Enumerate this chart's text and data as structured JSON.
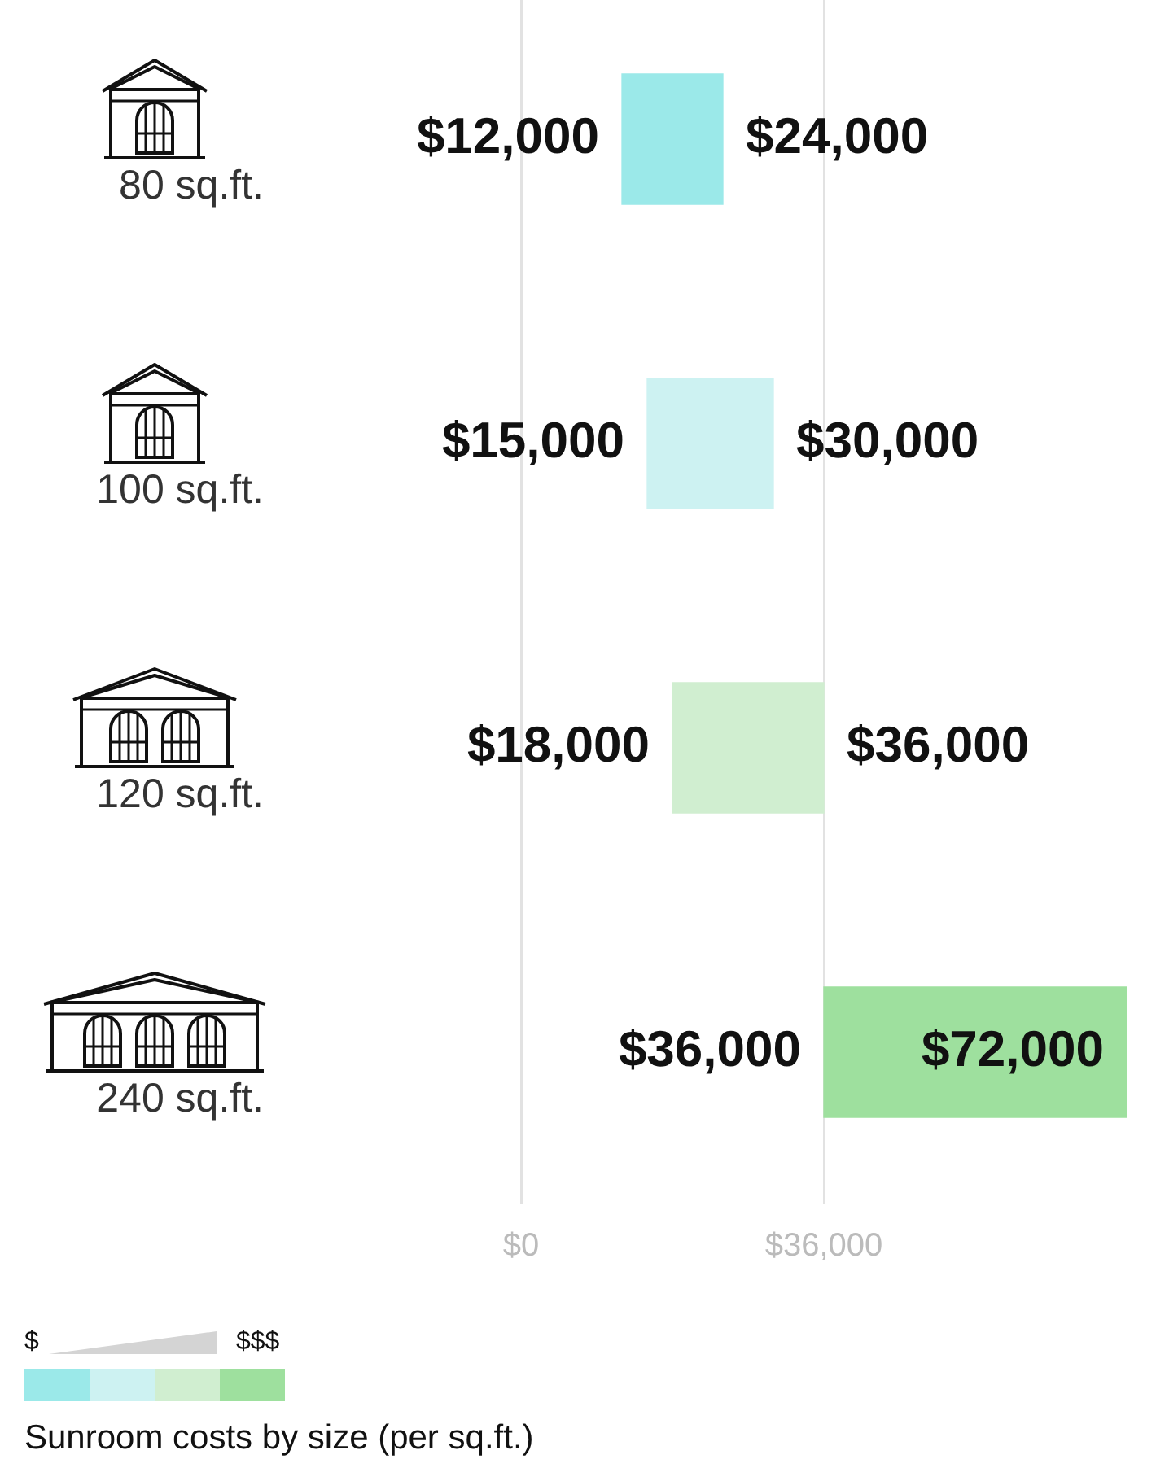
{
  "chart_data": {
    "type": "bar",
    "orientation": "horizontal",
    "title": "Sunroom costs by size (per sq.ft.)",
    "categories": [
      "80 sq.ft.",
      "100 sq.ft.",
      "120 sq.ft.",
      "240 sq.ft."
    ],
    "base": [
      12000,
      15000,
      18000,
      36000
    ],
    "values": [
      12000,
      15000,
      18000,
      36000
    ],
    "colors": [
      "#9be9e9",
      "#cdf2f2",
      "#d0eed0",
      "#9ee09e"
    ],
    "xlim": [
      0,
      72000
    ],
    "xticks": [
      {
        "value": 0,
        "label": "$0"
      },
      {
        "value": 36000,
        "label": "$36,000"
      }
    ],
    "grid": "x",
    "legend": false,
    "annotations": [
      {
        "text": "$12,000",
        "x": 12000,
        "y": "80 sq.ft."
      },
      {
        "text": "$24,000",
        "x": 24000,
        "y": "80 sq.ft."
      },
      {
        "text": "$15,000",
        "x": 15000,
        "y": "100 sq.ft."
      },
      {
        "text": "$30,000",
        "x": 30000,
        "y": "100 sq.ft."
      },
      {
        "text": "$18,000",
        "x": 18000,
        "y": "120 sq.ft."
      },
      {
        "text": "$36,000",
        "x": 36000,
        "y": "120 sq.ft."
      },
      {
        "text": "$36,000",
        "x": 36000,
        "y": "240 sq.ft."
      },
      {
        "text": "$72,000",
        "x": 72000,
        "y": "240 sq.ft."
      },
      "$",
      "$$$"
    ]
  }
}
